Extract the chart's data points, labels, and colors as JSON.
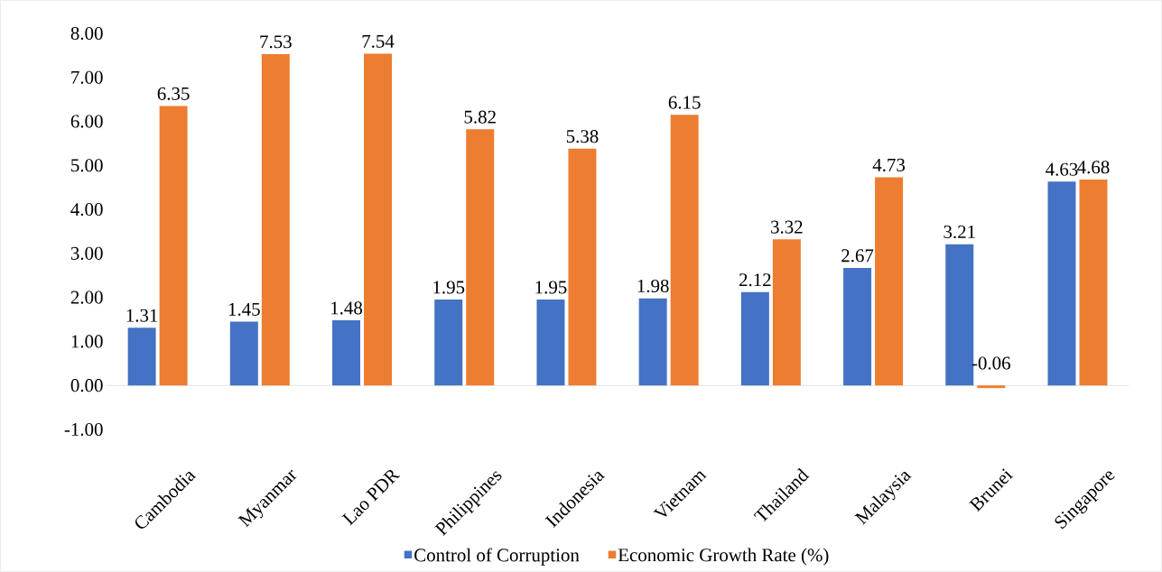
{
  "chart_data": {
    "type": "bar",
    "categories": [
      "Cambodia",
      "Myanmar",
      "Lao PDR",
      "Philippines",
      "Indonesia",
      "Vietnam",
      "Thailand",
      "Malaysia",
      "Brunei",
      "Singapore"
    ],
    "series": [
      {
        "name": "Control of Corruption",
        "color": "#4472c4",
        "values": [
          1.31,
          1.45,
          1.48,
          1.95,
          1.95,
          1.98,
          2.12,
          2.67,
          3.21,
          4.63
        ],
        "value_labels": [
          "1.31",
          "1.45",
          "1.48",
          "1.95",
          "1.95",
          "1.98",
          "2.12",
          "2.67",
          "3.21",
          "4.63"
        ]
      },
      {
        "name": "Economic Growth Rate (%)",
        "color": "#ed7d31",
        "values": [
          6.35,
          7.53,
          7.54,
          5.82,
          5.38,
          6.15,
          3.32,
          4.73,
          -0.06,
          4.68
        ],
        "value_labels": [
          "6.35",
          "7.53",
          "7.54",
          "5.82",
          "5.38",
          "6.15",
          "3.32",
          "4.73",
          "-0.06",
          "4.68"
        ]
      }
    ],
    "ylim": [
      -1,
      8
    ],
    "yticks": [
      {
        "value": -1,
        "label": "-1.00"
      },
      {
        "value": 0,
        "label": "0.00"
      },
      {
        "value": 1,
        "label": "1.00"
      },
      {
        "value": 2,
        "label": "2.00"
      },
      {
        "value": 3,
        "label": "3.00"
      },
      {
        "value": 4,
        "label": "4.00"
      },
      {
        "value": 5,
        "label": "5.00"
      },
      {
        "value": 6,
        "label": "6.00"
      },
      {
        "value": 7,
        "label": "7.00"
      },
      {
        "value": 8,
        "label": "8.00"
      }
    ],
    "legend": "bottom"
  }
}
